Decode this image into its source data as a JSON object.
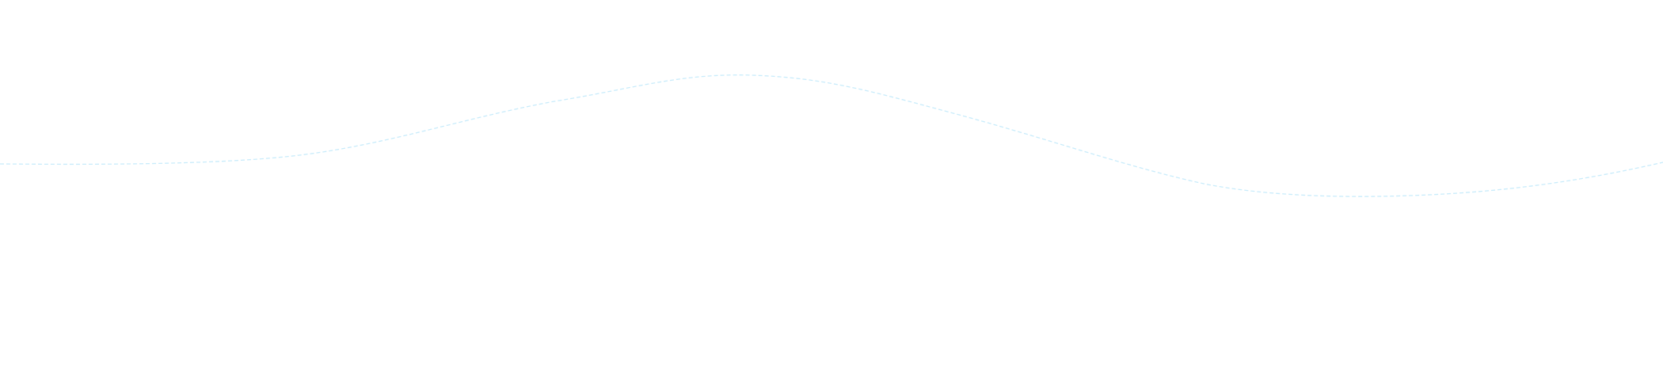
{
  "decoration": {
    "wave_color": "#c9ecfb",
    "background_color": "#ffffff",
    "line_style": "dashed"
  }
}
